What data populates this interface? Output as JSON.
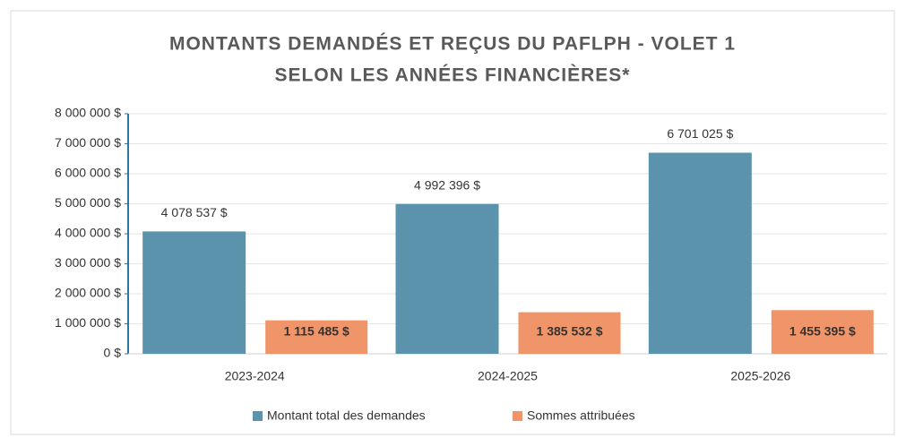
{
  "chart_data": {
    "type": "bar",
    "title": [
      "MONTANTS DEMANDÉS ET REÇUS DU PAFLPH - VOLET 1",
      "SELON LES ANNÉES FINANCIÈRES*"
    ],
    "categories": [
      "2023-2024",
      "2024-2025",
      "2025-2026"
    ],
    "series": [
      {
        "name": "Montant total des demandes",
        "color": "#5b93ad",
        "values": [
          4078537,
          4992396,
          6701025
        ],
        "value_labels": [
          "4 078 537 $",
          "4 992 396 $",
          "6 701 025 $"
        ]
      },
      {
        "name": "Sommes attribuées",
        "color": "#f0956a",
        "values": [
          1115485,
          1385532,
          1455395
        ],
        "value_labels": [
          "1 115 485 $",
          "1 385 532 $",
          "1 455 395 $"
        ]
      }
    ],
    "ylim": [
      0,
      8000000
    ],
    "yticks": [
      {
        "value": 0,
        "label": "0 $"
      },
      {
        "value": 1000000,
        "label": "1 000 000 $"
      },
      {
        "value": 2000000,
        "label": "2 000 000 $"
      },
      {
        "value": 3000000,
        "label": "3 000 000 $"
      },
      {
        "value": 4000000,
        "label": "4 000 000 $"
      },
      {
        "value": 5000000,
        "label": "5 000 000 $"
      },
      {
        "value": 6000000,
        "label": "6 000 000 $"
      },
      {
        "value": 7000000,
        "label": "7 000 000 $"
      },
      {
        "value": 8000000,
        "label": "8 000 000 $"
      }
    ],
    "grid": true,
    "legend": "bottom"
  }
}
